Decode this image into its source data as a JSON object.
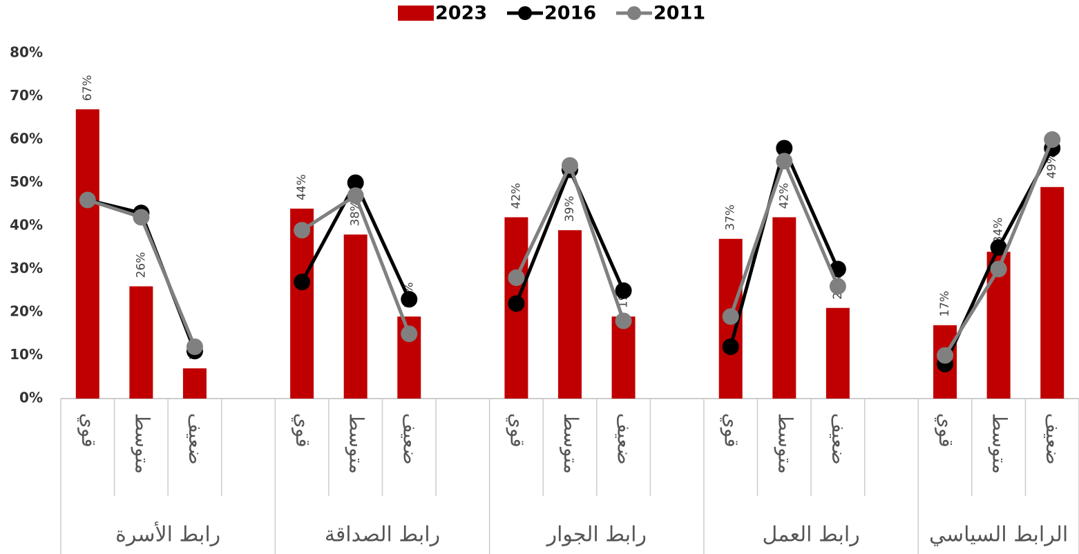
{
  "chart_data": {
    "type": "bar",
    "categories": [
      "قوي",
      "متوسط",
      "ضعيف",
      null,
      "قوي",
      "متوسط",
      "ضعيف",
      null,
      "قوي",
      "متوسط",
      "ضعيف",
      null,
      "قوي",
      "متوسط",
      "ضعيف",
      null,
      "قوي",
      "متوسط",
      "ضعيف"
    ],
    "groups": [
      "رابط الأسرة",
      "رابط الصداقة",
      "رابط الجوار",
      "رابط العمل",
      "الرابط السياسي"
    ],
    "series": [
      {
        "name": "2023",
        "type": "bar",
        "color": "#c00000",
        "values": [
          67,
          26,
          7,
          null,
          44,
          38,
          19,
          null,
          42,
          39,
          19,
          null,
          37,
          42,
          21,
          null,
          17,
          34,
          49
        ],
        "value_labels": [
          "67%",
          "26%",
          "7%",
          null,
          "44%",
          "38%",
          "19%",
          null,
          "42%",
          "39%",
          "19%",
          null,
          "37%",
          "42%",
          "21%",
          null,
          "17%",
          "34%",
          "49%"
        ]
      },
      {
        "name": "2016",
        "type": "line",
        "color": "#000000",
        "values": [
          46,
          43,
          11,
          null,
          27,
          50,
          23,
          null,
          22,
          53,
          25,
          null,
          12,
          58,
          30,
          null,
          8,
          35,
          58
        ]
      },
      {
        "name": "2011",
        "type": "line",
        "color": "#808080",
        "values": [
          46,
          42,
          12,
          null,
          39,
          47,
          15,
          null,
          28,
          54,
          18,
          null,
          19,
          55,
          26,
          null,
          10,
          30,
          60
        ]
      }
    ],
    "ylim": [
      0,
      80
    ],
    "yticks": [
      {
        "value": 0,
        "label": "0%"
      },
      {
        "value": 10,
        "label": "10%"
      },
      {
        "value": 20,
        "label": "20%"
      },
      {
        "value": 30,
        "label": "30%"
      },
      {
        "value": 40,
        "label": "40%"
      },
      {
        "value": 50,
        "label": "50%"
      },
      {
        "value": 60,
        "label": "60%"
      },
      {
        "value": 70,
        "label": "70%"
      },
      {
        "value": 80,
        "label": "80%"
      }
    ],
    "legend": "top"
  }
}
